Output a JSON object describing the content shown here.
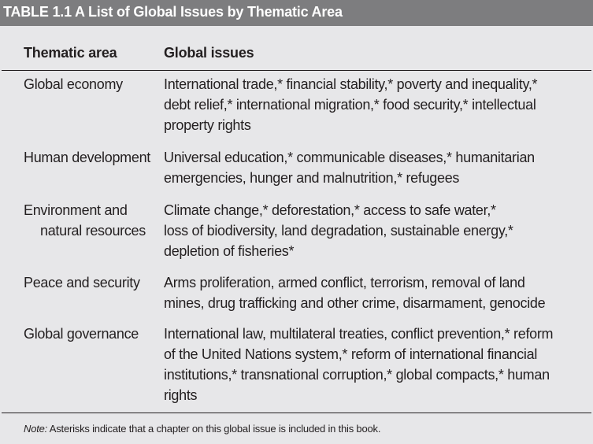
{
  "table": {
    "title": "TABLE 1.1  A List of Global Issues by Thematic Area",
    "headers": {
      "thematic_area": "Thematic area",
      "global_issues": "Global issues"
    },
    "rows": [
      {
        "area_lines": [
          "Global economy"
        ],
        "issue_lines": [
          "International trade,* financial stability,* poverty and inequality,*",
          "debt relief,* international migration,* food security,* intellectual",
          "property rights"
        ]
      },
      {
        "area_lines": [
          "Human development"
        ],
        "issue_lines": [
          "Universal education,* communicable diseases,* humanitarian",
          "emergencies, hunger and malnutrition,* refugees"
        ]
      },
      {
        "area_lines": [
          "Environment and",
          "natural resources"
        ],
        "issue_lines": [
          "Climate change,* deforestation,* access to safe water,*",
          "loss of biodiversity, land degradation, sustainable energy,*",
          "depletion of fisheries*"
        ]
      },
      {
        "area_lines": [
          "Peace and security"
        ],
        "issue_lines": [
          "Arms proliferation, armed conflict, terrorism, removal of land",
          "mines, drug trafficking and other crime, disarmament, genocide"
        ]
      },
      {
        "area_lines": [
          "Global governance"
        ],
        "issue_lines": [
          "International law, multilateral treaties, conflict prevention,* reform",
          "of the United Nations system,* reform of international financial",
          "institutions,* transnational corruption,* global compacts,* human",
          "rights"
        ]
      }
    ],
    "note": {
      "label": "Note:",
      "text": " Asterisks indicate that a chapter on this global issue is included in this book."
    }
  }
}
